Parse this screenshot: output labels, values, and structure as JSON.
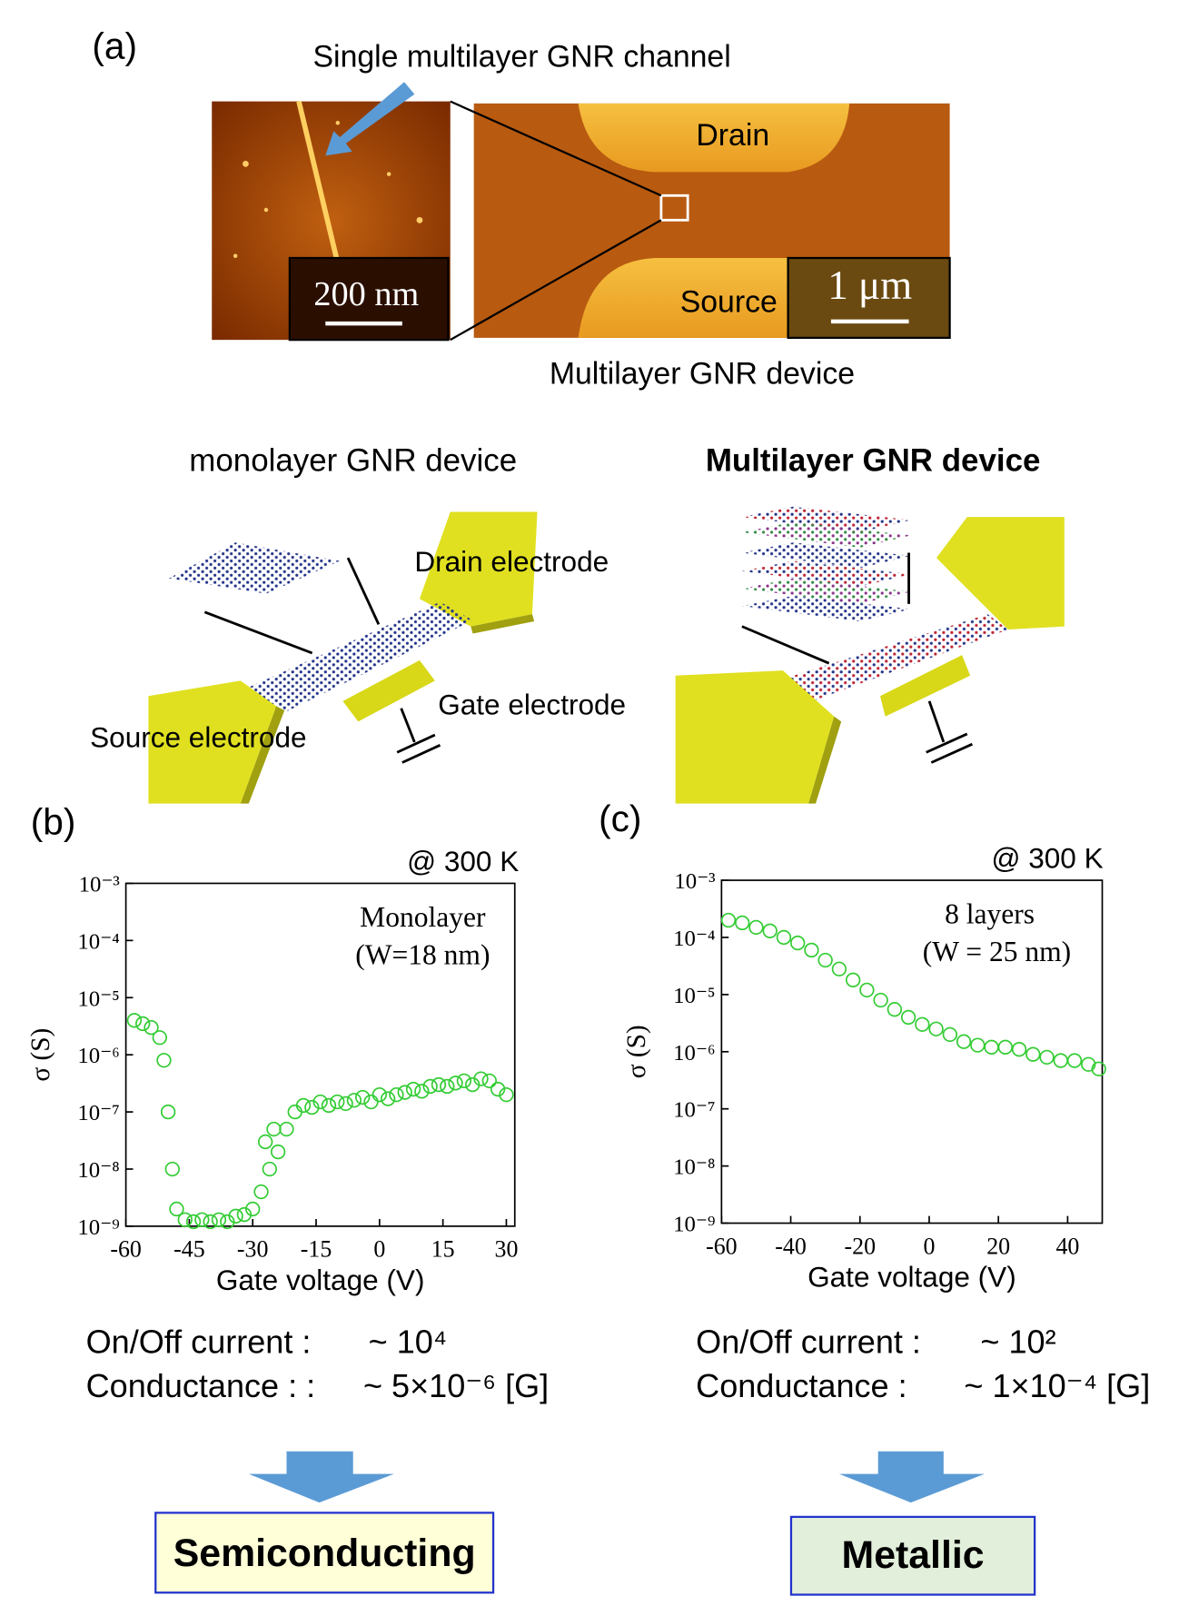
{
  "panel_a": {
    "label": "(a)",
    "arrow_label": "Single multilayer GNR channel",
    "scale_left": "200 nm",
    "scale_right": "1 μm",
    "drain": "Drain",
    "source": "Source",
    "caption": "Multilayer GNR device"
  },
  "schematics": {
    "left_title": "monolayer GNR device",
    "right_title": "Multilayer GNR device",
    "drain": "Drain electrode",
    "gate": "Gate electrode",
    "source": "Source electrode"
  },
  "chart_data": [
    {
      "type": "scatter",
      "panel_label": "(b)",
      "annotation": "@ 300 K",
      "notes": [
        "Monolayer",
        "(W=18 nm)"
      ],
      "xlabel": "Gate voltage (V)",
      "ylabel": "σ (S)",
      "color": "#33cc33",
      "log_y": true,
      "xlim": [
        -60,
        32
      ],
      "ylim": [
        1e-09,
        0.001
      ],
      "xticks": [
        -60,
        -45,
        -30,
        -15,
        0,
        15,
        30
      ],
      "yticks": [
        {
          "value": 1e-09,
          "label": "10⁻⁹"
        },
        {
          "value": 1e-08,
          "label": "10⁻⁸"
        },
        {
          "value": 1e-07,
          "label": "10⁻⁷"
        },
        {
          "value": 1e-06,
          "label": "10⁻⁶"
        },
        {
          "value": 1e-05,
          "label": "10⁻⁵"
        },
        {
          "value": 0.0001,
          "label": "10⁻⁴"
        },
        {
          "value": 0.001,
          "label": "10⁻³"
        }
      ],
      "x": [
        -58,
        -56,
        -54,
        -52,
        -51,
        -50,
        -49,
        -48,
        -46,
        -44,
        -42,
        -40,
        -38,
        -36,
        -34,
        -32,
        -30,
        -28,
        -27,
        -26,
        -25,
        -24,
        -22,
        -20,
        -18,
        -16,
        -14,
        -12,
        -10,
        -8,
        -6,
        -4,
        -2,
        0,
        2,
        4,
        6,
        8,
        10,
        12,
        14,
        16,
        18,
        20,
        22,
        24,
        26,
        28,
        30
      ],
      "y": [
        4e-06,
        3.5e-06,
        3e-06,
        2e-06,
        8e-07,
        1e-07,
        1e-08,
        2e-09,
        1.3e-09,
        1.2e-09,
        1.3e-09,
        1.2e-09,
        1.3e-09,
        1.2e-09,
        1.5e-09,
        1.6e-09,
        2e-09,
        4e-09,
        3e-08,
        1e-08,
        5e-08,
        2e-08,
        5e-08,
        1e-07,
        1.3e-07,
        1.2e-07,
        1.5e-07,
        1.3e-07,
        1.5e-07,
        1.4e-07,
        1.6e-07,
        1.8e-07,
        1.5e-07,
        2e-07,
        1.7e-07,
        2e-07,
        2.2e-07,
        2.5e-07,
        2.3e-07,
        2.8e-07,
        3e-07,
        2.8e-07,
        3.2e-07,
        3.5e-07,
        3e-07,
        3.8e-07,
        3.5e-07,
        2.5e-07,
        2e-07
      ]
    },
    {
      "type": "scatter",
      "panel_label": "(c)",
      "annotation": "@ 300 K",
      "notes": [
        "8 layers",
        "(W = 25 nm)"
      ],
      "xlabel": "Gate voltage (V)",
      "ylabel": "σ (S)",
      "color": "#33cc33",
      "log_y": true,
      "xlim": [
        -60,
        50
      ],
      "ylim": [
        1e-09,
        0.001
      ],
      "xticks": [
        -60,
        -40,
        -20,
        0,
        20,
        40
      ],
      "yticks": [
        {
          "value": 1e-09,
          "label": "10⁻⁹"
        },
        {
          "value": 1e-08,
          "label": "10⁻⁸"
        },
        {
          "value": 1e-07,
          "label": "10⁻⁷"
        },
        {
          "value": 1e-06,
          "label": "10⁻⁶"
        },
        {
          "value": 1e-05,
          "label": "10⁻⁵"
        },
        {
          "value": 0.0001,
          "label": "10⁻⁴"
        },
        {
          "value": 0.001,
          "label": "10⁻³"
        }
      ],
      "x": [
        -58,
        -54,
        -50,
        -46,
        -42,
        -38,
        -34,
        -30,
        -26,
        -22,
        -18,
        -14,
        -10,
        -6,
        -2,
        2,
        6,
        10,
        14,
        18,
        22,
        26,
        30,
        34,
        38,
        42,
        46,
        49
      ],
      "y": [
        0.0002,
        0.00018,
        0.00015,
        0.00013,
        0.0001,
        8e-05,
        6e-05,
        4e-05,
        2.8e-05,
        1.8e-05,
        1.2e-05,
        8e-06,
        5.5e-06,
        4e-06,
        3e-06,
        2.5e-06,
        2e-06,
        1.5e-06,
        1.3e-06,
        1.2e-06,
        1.2e-06,
        1.1e-06,
        9e-07,
        8e-07,
        7e-07,
        7e-07,
        6e-07,
        5e-07
      ]
    }
  ],
  "summary": [
    {
      "onoff_label": "On/Off current :",
      "onoff_value": "~ 10⁴",
      "cond_label": "Conductance : :",
      "cond_value": "~ 5×10⁻⁶ [G]",
      "verdict": "Semiconducting"
    },
    {
      "onoff_label": "On/Off current :",
      "onoff_value": "~ 10²",
      "cond_label": "Conductance :",
      "cond_value": "~ 1×10⁻⁴ [G]",
      "verdict": "Metallic"
    }
  ]
}
